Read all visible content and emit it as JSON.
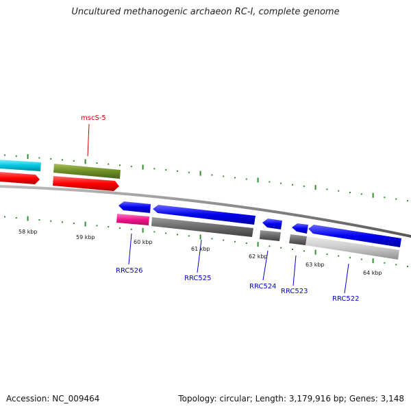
{
  "title": "Uncultured methanogenic archaeon RC-I, complete genome",
  "footer": {
    "accession": "Accession: NC_009464",
    "summary": "Topology: circular; Length: 3,179,916 bp; Genes: 3,148"
  },
  "colors": {
    "backbone": "#808080",
    "ticks": "#2e8b2e",
    "label_blue": "#0000cc",
    "label_red": "#cc0000"
  },
  "ticks": [
    {
      "label": "58 kbp"
    },
    {
      "label": "59 kbp"
    },
    {
      "label": "60 kbp"
    },
    {
      "label": "61 kbp"
    },
    {
      "label": "62 kbp"
    },
    {
      "label": "63 kbp"
    },
    {
      "label": "64 kbp"
    }
  ],
  "gene_labels": [
    {
      "id": "mscS-5",
      "label": "mscS-5"
    },
    {
      "id": "RRC526",
      "label": "RRC526"
    },
    {
      "id": "RRC525",
      "label": "RRC525"
    },
    {
      "id": "RRC524",
      "label": "RRC524"
    },
    {
      "id": "RRC523",
      "label": "RRC523"
    },
    {
      "id": "RRC522",
      "label": "RRC522"
    }
  ]
}
